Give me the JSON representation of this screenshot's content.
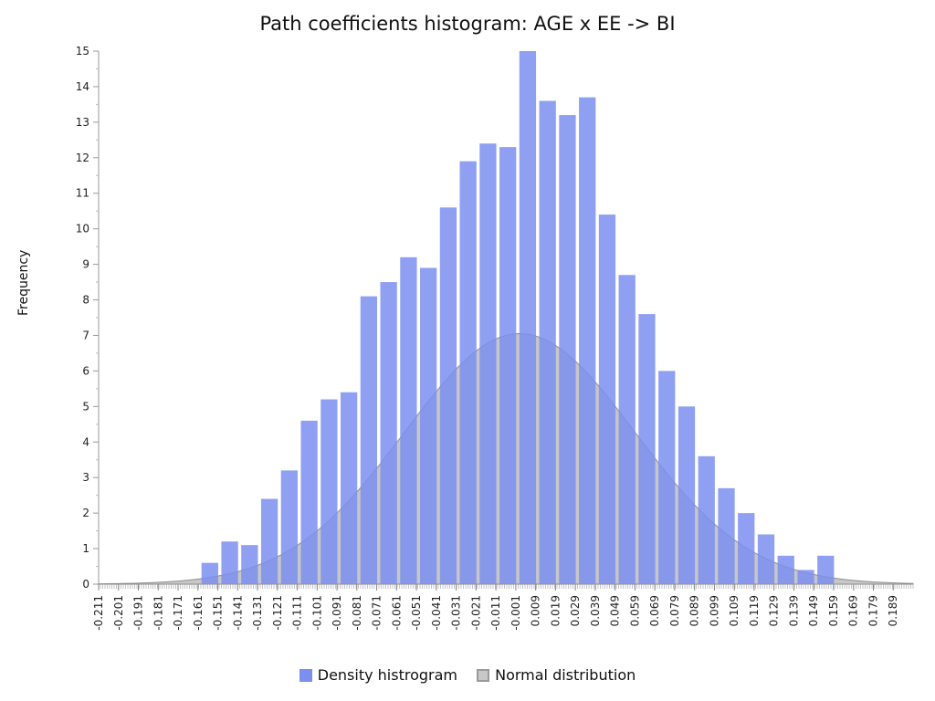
{
  "chart_data": {
    "type": "bar",
    "title": "Path coefficients histogram: AGE x EE -> BI",
    "ylabel": "Frequency",
    "xlabel": "",
    "ylim": [
      0,
      15
    ],
    "xlim": [
      -0.211,
      0.199
    ],
    "y_ticks": [
      0,
      1,
      2,
      3,
      4,
      5,
      6,
      7,
      8,
      9,
      10,
      11,
      12,
      13,
      14,
      15
    ],
    "x_tick_labels": [
      "-0.211",
      "-0.201",
      "-0.191",
      "-0.181",
      "-0.171",
      "-0.161",
      "-0.151",
      "-0.141",
      "-0.131",
      "-0.121",
      "-0.111",
      "-0.101",
      "-0.091",
      "-0.081",
      "-0.071",
      "-0.061",
      "-0.051",
      "-0.041",
      "-0.031",
      "-0.021",
      "-0.011",
      "-0.001",
      "0.009",
      "0.019",
      "0.029",
      "0.039",
      "0.049",
      "0.059",
      "0.069",
      "0.079",
      "0.089",
      "0.099",
      "0.109",
      "0.119",
      "0.129",
      "0.139",
      "0.149",
      "0.159",
      "0.169",
      "0.179",
      "0.189"
    ],
    "legend": {
      "position": "bottom",
      "items": [
        {
          "label": "Density histrogram",
          "color": "#7b8ff0"
        },
        {
          "label": "Normal distribution",
          "color": "#c8c8c8"
        }
      ]
    },
    "series": [
      {
        "kind": "histogram",
        "color": "#7b8ff0",
        "bins_x": [
          -0.155,
          -0.145,
          -0.135,
          -0.125,
          -0.115,
          -0.105,
          -0.095,
          -0.085,
          -0.075,
          -0.065,
          -0.055,
          -0.045,
          -0.035,
          -0.025,
          -0.015,
          -0.005,
          0.005,
          0.015,
          0.025,
          0.035,
          0.045,
          0.055,
          0.065,
          0.075,
          0.085,
          0.095,
          0.105,
          0.115,
          0.125,
          0.135,
          0.145,
          0.155
        ],
        "values": [
          0.6,
          1.2,
          1.1,
          2.4,
          3.2,
          4.6,
          5.2,
          5.4,
          8.1,
          8.5,
          9.2,
          8.9,
          10.6,
          11.9,
          12.4,
          12.3,
          15.0,
          13.6,
          13.2,
          13.7,
          10.4,
          8.7,
          7.6,
          6.0,
          5.0,
          3.6,
          2.7,
          2.0,
          1.4,
          0.8,
          0.4,
          0.8
        ]
      },
      {
        "kind": "normal",
        "color": "#c8c8c8",
        "mean": 0.001,
        "sd": 0.058,
        "peak": 7.05
      }
    ]
  }
}
